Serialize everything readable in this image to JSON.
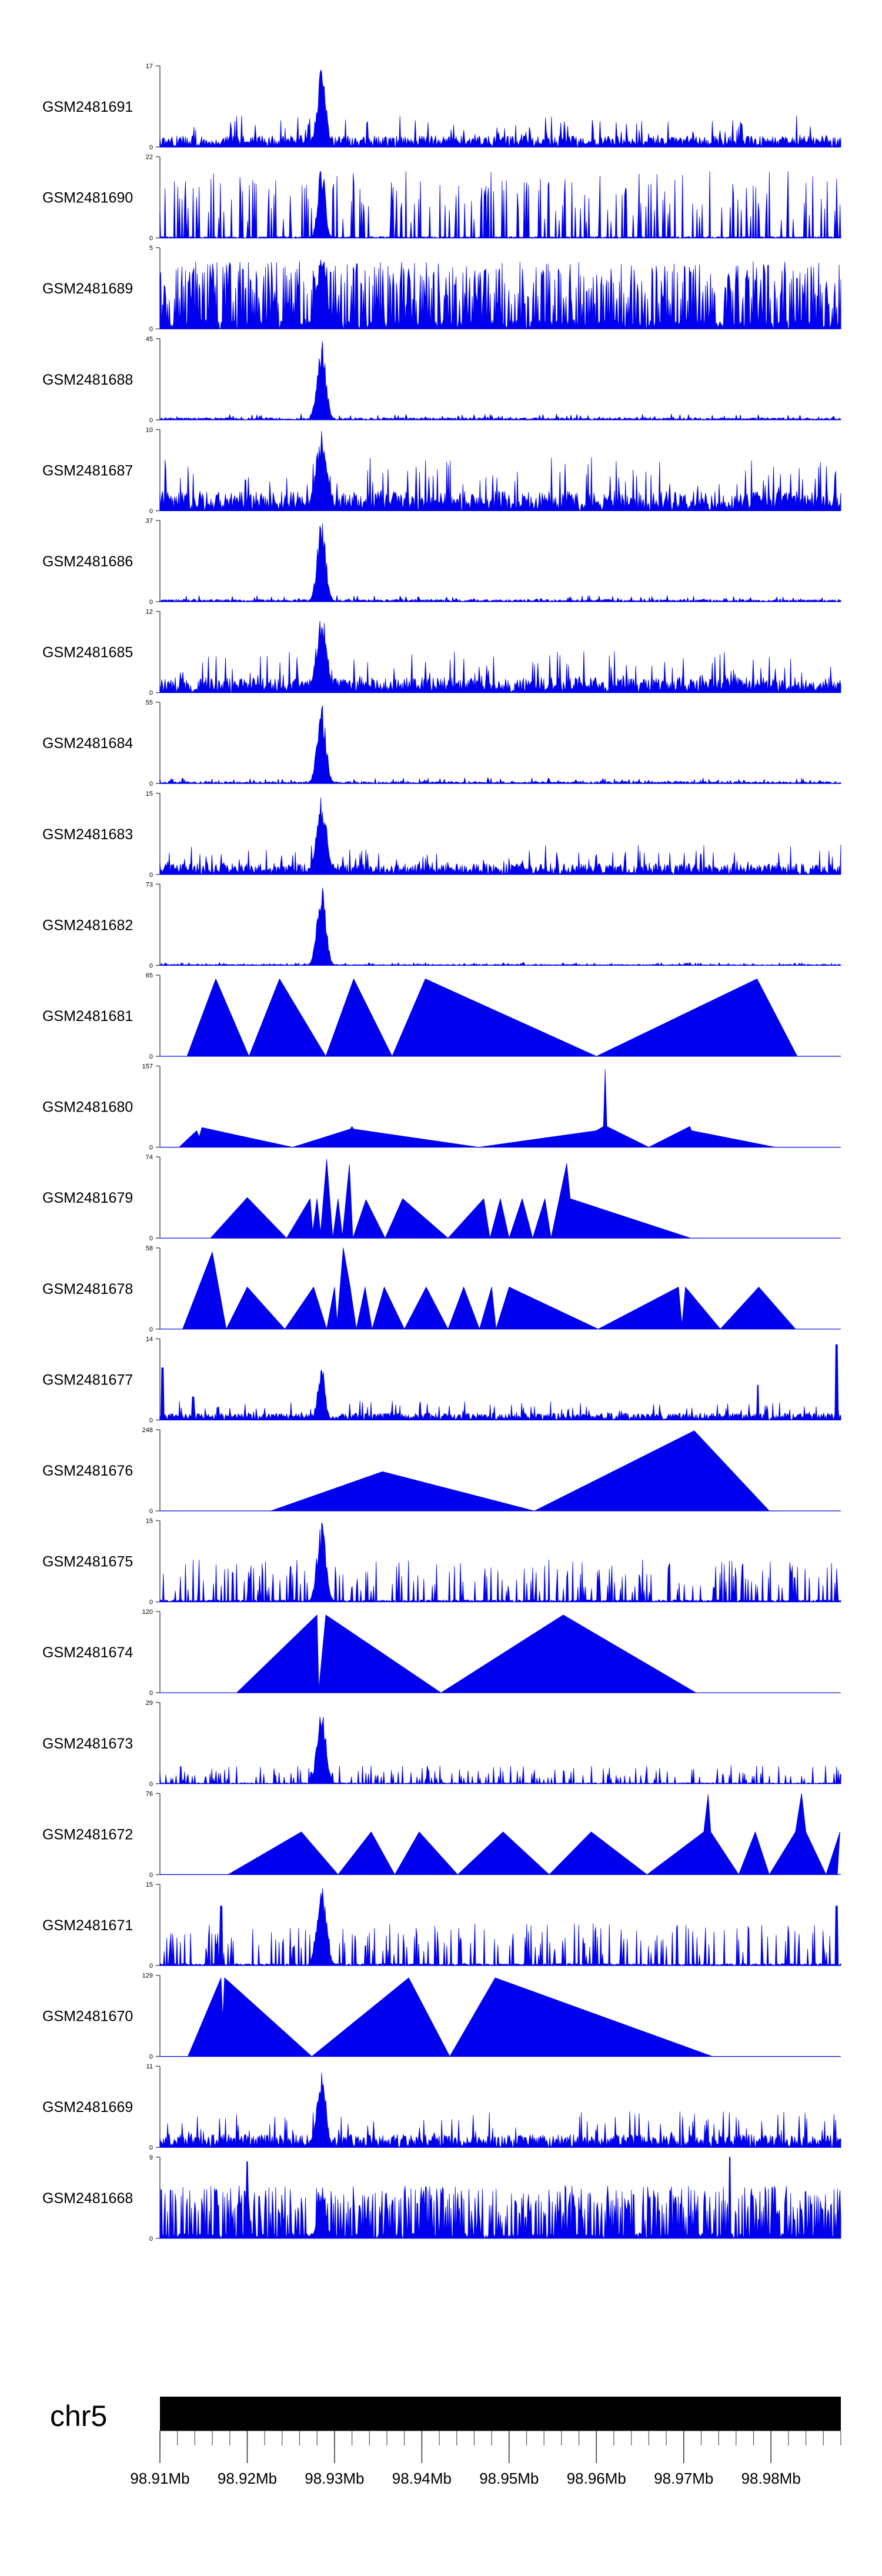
{
  "colors": {
    "signal": "#0000ee",
    "axis": "#555555",
    "text": "#000000",
    "ideogram": "#000000"
  },
  "chart_data": {
    "type": "area",
    "title": "",
    "xlabel": "",
    "ylabel": "",
    "xlim_mb": [
      98.91,
      98.988
    ],
    "peak_region_mb": [
      98.927,
      98.93
    ],
    "chromosome": "chr5",
    "x_ticks": [
      {
        "value": 98.91,
        "label": "98.91Mb"
      },
      {
        "value": 98.92,
        "label": "98.92Mb"
      },
      {
        "value": 98.93,
        "label": "98.93Mb"
      },
      {
        "value": 98.94,
        "label": "98.94Mb"
      },
      {
        "value": 98.95,
        "label": "98.95Mb"
      },
      {
        "value": 98.96,
        "label": "98.96Mb"
      },
      {
        "value": 98.97,
        "label": "98.97Mb"
      },
      {
        "value": 98.98,
        "label": "98.98Mb"
      }
    ],
    "tracks": [
      {
        "name": "GSM2481691",
        "ymax": 17,
        "ymax_label": "17",
        "ymin_label": "0",
        "style": "dense",
        "background": 3,
        "spread": 0.5,
        "peak": 17,
        "seed": 1
      },
      {
        "name": "GSM2481690",
        "ymax": 22,
        "ymax_label": "22",
        "ymin_label": "0",
        "style": "spiky_sparse",
        "background": 14,
        "spread": 0.4,
        "peak": 22,
        "seed": 2
      },
      {
        "name": "GSM2481689",
        "ymax": 5,
        "ymax_label": "5",
        "ymin_label": "0",
        "style": "spiky_dense",
        "background": 3.2,
        "spread": 0.55,
        "peak": 5,
        "seed": 3
      },
      {
        "name": "GSM2481688",
        "ymax": 45,
        "ymax_label": "45",
        "ymin_label": "0",
        "style": "dense",
        "background": 1.5,
        "spread": 0.5,
        "peak": 45,
        "seed": 4
      },
      {
        "name": "GSM2481687",
        "ymax": 10,
        "ymax_label": "10",
        "ymin_label": "0",
        "style": "dense",
        "background": 3,
        "spread": 0.65,
        "peak": 10,
        "seed": 5
      },
      {
        "name": "GSM2481686",
        "ymax": 37,
        "ymax_label": "37",
        "ymin_label": "0",
        "style": "dense",
        "background": 1.3,
        "spread": 0.5,
        "peak": 37,
        "seed": 6
      },
      {
        "name": "GSM2481685",
        "ymax": 12,
        "ymax_label": "12",
        "ymin_label": "0",
        "style": "dense",
        "background": 2.8,
        "spread": 0.6,
        "peak": 12,
        "seed": 7
      },
      {
        "name": "GSM2481684",
        "ymax": 55,
        "ymax_label": "55",
        "ymin_label": "0",
        "style": "dense",
        "background": 1.8,
        "spread": 0.5,
        "peak": 55,
        "seed": 8
      },
      {
        "name": "GSM2481683",
        "ymax": 15,
        "ymax_label": "15",
        "ymin_label": "0",
        "style": "dense",
        "background": 2.5,
        "spread": 0.6,
        "peak": 15,
        "seed": 9
      },
      {
        "name": "GSM2481682",
        "ymax": 73,
        "ymax_label": "73",
        "ymin_label": "0",
        "style": "dense",
        "background": 1.2,
        "spread": 0.5,
        "peak": 73,
        "seed": 10
      },
      {
        "name": "GSM2481681",
        "ymax": 65,
        "ymax_label": "65",
        "ymin_label": "0",
        "style": "triangles",
        "points": [
          [
            98.9131,
            0
          ],
          [
            98.9164,
            62
          ],
          [
            98.9202,
            0
          ],
          [
            98.9237,
            62
          ],
          [
            98.929,
            0
          ],
          [
            98.9322,
            62
          ],
          [
            98.9366,
            0
          ],
          [
            98.9404,
            62
          ],
          [
            98.96,
            0
          ],
          [
            98.9784,
            62
          ],
          [
            98.983,
            0
          ]
        ]
      },
      {
        "name": "GSM2481680",
        "ymax": 157,
        "ymax_label": "157",
        "ymin_label": "0",
        "style": "triangles",
        "points": [
          [
            98.9122,
            0
          ],
          [
            98.9142,
            32
          ],
          [
            98.9145,
            20
          ],
          [
            98.9148,
            38
          ],
          [
            98.9252,
            0
          ],
          [
            98.9318,
            35
          ],
          [
            98.932,
            40
          ],
          [
            98.9322,
            35
          ],
          [
            98.9465,
            0
          ],
          [
            98.96,
            32
          ],
          [
            98.9608,
            40
          ],
          [
            98.961,
            150
          ],
          [
            98.9612,
            40
          ],
          [
            98.966,
            0
          ],
          [
            98.9707,
            40
          ],
          [
            98.9709,
            32
          ],
          [
            98.9805,
            0
          ]
        ]
      },
      {
        "name": "GSM2481679",
        "ymax": 74,
        "ymax_label": "74",
        "ymin_label": "0",
        "style": "triangles",
        "points": [
          [
            98.9158,
            0
          ],
          [
            98.92,
            37
          ],
          [
            98.9245,
            0
          ],
          [
            98.9272,
            36
          ],
          [
            98.9275,
            6
          ],
          [
            98.928,
            36
          ],
          [
            98.9284,
            5
          ],
          [
            98.9291,
            72
          ],
          [
            98.9298,
            0
          ],
          [
            98.9304,
            36
          ],
          [
            98.9309,
            2
          ],
          [
            98.9317,
            67
          ],
          [
            98.9321,
            0
          ],
          [
            98.9336,
            35
          ],
          [
            98.9358,
            0
          ],
          [
            98.9378,
            36
          ],
          [
            98.943,
            0
          ],
          [
            98.9471,
            36
          ],
          [
            98.9478,
            0
          ],
          [
            98.949,
            36
          ],
          [
            98.95,
            0
          ],
          [
            98.9515,
            36
          ],
          [
            98.9527,
            0
          ],
          [
            98.9541,
            36
          ],
          [
            98.9548,
            0
          ],
          [
            98.9566,
            68
          ],
          [
            98.957,
            36
          ],
          [
            98.9708,
            0
          ]
        ]
      },
      {
        "name": "GSM2481678",
        "ymax": 58,
        "ymax_label": "58",
        "ymin_label": "0",
        "style": "triangles",
        "points": [
          [
            98.9126,
            0
          ],
          [
            98.916,
            55
          ],
          [
            98.9176,
            0
          ],
          [
            98.92,
            30
          ],
          [
            98.9243,
            0
          ],
          [
            98.9276,
            30
          ],
          [
            98.9291,
            0
          ],
          [
            98.93,
            30
          ],
          [
            98.9303,
            5
          ],
          [
            98.931,
            58
          ],
          [
            98.9318,
            30
          ],
          [
            98.9325,
            0
          ],
          [
            98.9335,
            30
          ],
          [
            98.9343,
            0
          ],
          [
            98.9357,
            30
          ],
          [
            98.938,
            0
          ],
          [
            98.9405,
            30
          ],
          [
            98.943,
            0
          ],
          [
            98.9448,
            30
          ],
          [
            98.9466,
            0
          ],
          [
            98.948,
            30
          ],
          [
            98.9485,
            0
          ],
          [
            98.95,
            30
          ],
          [
            98.9602,
            0
          ],
          [
            98.9694,
            30
          ],
          [
            98.9698,
            3
          ],
          [
            98.9702,
            30
          ],
          [
            98.9742,
            0
          ],
          [
            98.9786,
            30
          ],
          [
            98.9828,
            0
          ]
        ]
      },
      {
        "name": "GSM2481677",
        "ymax": 14,
        "ymax_label": "14",
        "ymin_label": "0",
        "style": "dense",
        "background": 1.5,
        "spread": 0.4,
        "peak": 10,
        "seed": 11,
        "extra_peaks": [
          [
            98.9103,
            9
          ],
          [
            98.9875,
            13
          ],
          [
            98.9785,
            6
          ],
          [
            98.9138,
            4
          ]
        ]
      },
      {
        "name": "GSM2481676",
        "ymax": 248,
        "ymax_label": "248",
        "ymin_label": "0",
        "style": "triangles",
        "points": [
          [
            98.9227,
            0
          ],
          [
            98.9355,
            120
          ],
          [
            98.9529,
            0
          ],
          [
            98.9712,
            245
          ],
          [
            98.9798,
            0
          ]
        ]
      },
      {
        "name": "GSM2481675",
        "ymax": 15,
        "ymax_label": "15",
        "ymin_label": "0",
        "style": "spiky_sparse",
        "background": 6,
        "spread": 0.5,
        "peak": 15,
        "seed": 12
      },
      {
        "name": "GSM2481674",
        "ymax": 120,
        "ymax_label": "120",
        "ymin_label": "0",
        "style": "triangles",
        "points": [
          [
            98.9188,
            0
          ],
          [
            98.928,
            115
          ],
          [
            98.9282,
            5
          ],
          [
            98.929,
            115
          ],
          [
            98.9422,
            0
          ],
          [
            98.9562,
            115
          ],
          [
            98.9714,
            0
          ]
        ]
      },
      {
        "name": "GSM2481673",
        "ymax": 29,
        "ymax_label": "29",
        "ymin_label": "0",
        "style": "spiky_sparse",
        "background": 5,
        "spread": 0.5,
        "peak": 29,
        "seed": 13
      },
      {
        "name": "GSM2481672",
        "ymax": 76,
        "ymax_label": "76",
        "ymin_label": "0",
        "style": "triangles",
        "points": [
          [
            98.9178,
            0
          ],
          [
            98.9262,
            40
          ],
          [
            98.9304,
            0
          ],
          [
            98.9342,
            40
          ],
          [
            98.9369,
            0
          ],
          [
            98.9397,
            40
          ],
          [
            98.9441,
            0
          ],
          [
            98.9493,
            40
          ],
          [
            98.9546,
            0
          ],
          [
            98.9594,
            40
          ],
          [
            98.9658,
            0
          ],
          [
            98.9723,
            40
          ],
          [
            98.9728,
            75
          ],
          [
            98.9731,
            40
          ],
          [
            98.9763,
            0
          ],
          [
            98.9782,
            40
          ],
          [
            98.9798,
            0
          ],
          [
            98.9828,
            40
          ],
          [
            98.9835,
            76
          ],
          [
            98.984,
            40
          ],
          [
            98.9863,
            0
          ],
          [
            98.9879,
            40
          ],
          [
            98.9876,
            0
          ]
        ]
      },
      {
        "name": "GSM2481671",
        "ymax": 15,
        "ymax_label": "15",
        "ymin_label": "0",
        "style": "spiky_sparse",
        "background": 6,
        "spread": 0.55,
        "peak": 15,
        "seed": 14,
        "extra_peaks": [
          [
            98.9875,
            11
          ],
          [
            98.917,
            11
          ]
        ]
      },
      {
        "name": "GSM2481670",
        "ymax": 129,
        "ymax_label": "129",
        "ymin_label": "0",
        "style": "triangles",
        "points": [
          [
            98.9132,
            0
          ],
          [
            98.917,
            125
          ],
          [
            98.9172,
            60
          ],
          [
            98.9174,
            125
          ],
          [
            98.9274,
            0
          ],
          [
            98.9385,
            125
          ],
          [
            98.9432,
            0
          ],
          [
            98.9484,
            125
          ],
          [
            98.9733,
            0
          ]
        ]
      },
      {
        "name": "GSM2481669",
        "ymax": 11,
        "ymax_label": "11",
        "ymin_label": "0",
        "style": "dense",
        "background": 2.2,
        "spread": 0.5,
        "peak": 11,
        "seed": 15
      },
      {
        "name": "GSM2481668",
        "ymax": 9,
        "ymax_label": "9",
        "ymin_label": "0",
        "style": "spiky_dense",
        "background": 4.5,
        "spread": 0.45,
        "peak": 6,
        "seed": 16,
        "extra_peaks": [
          [
            98.92,
            8.5
          ],
          [
            98.9753,
            9
          ]
        ]
      }
    ]
  }
}
